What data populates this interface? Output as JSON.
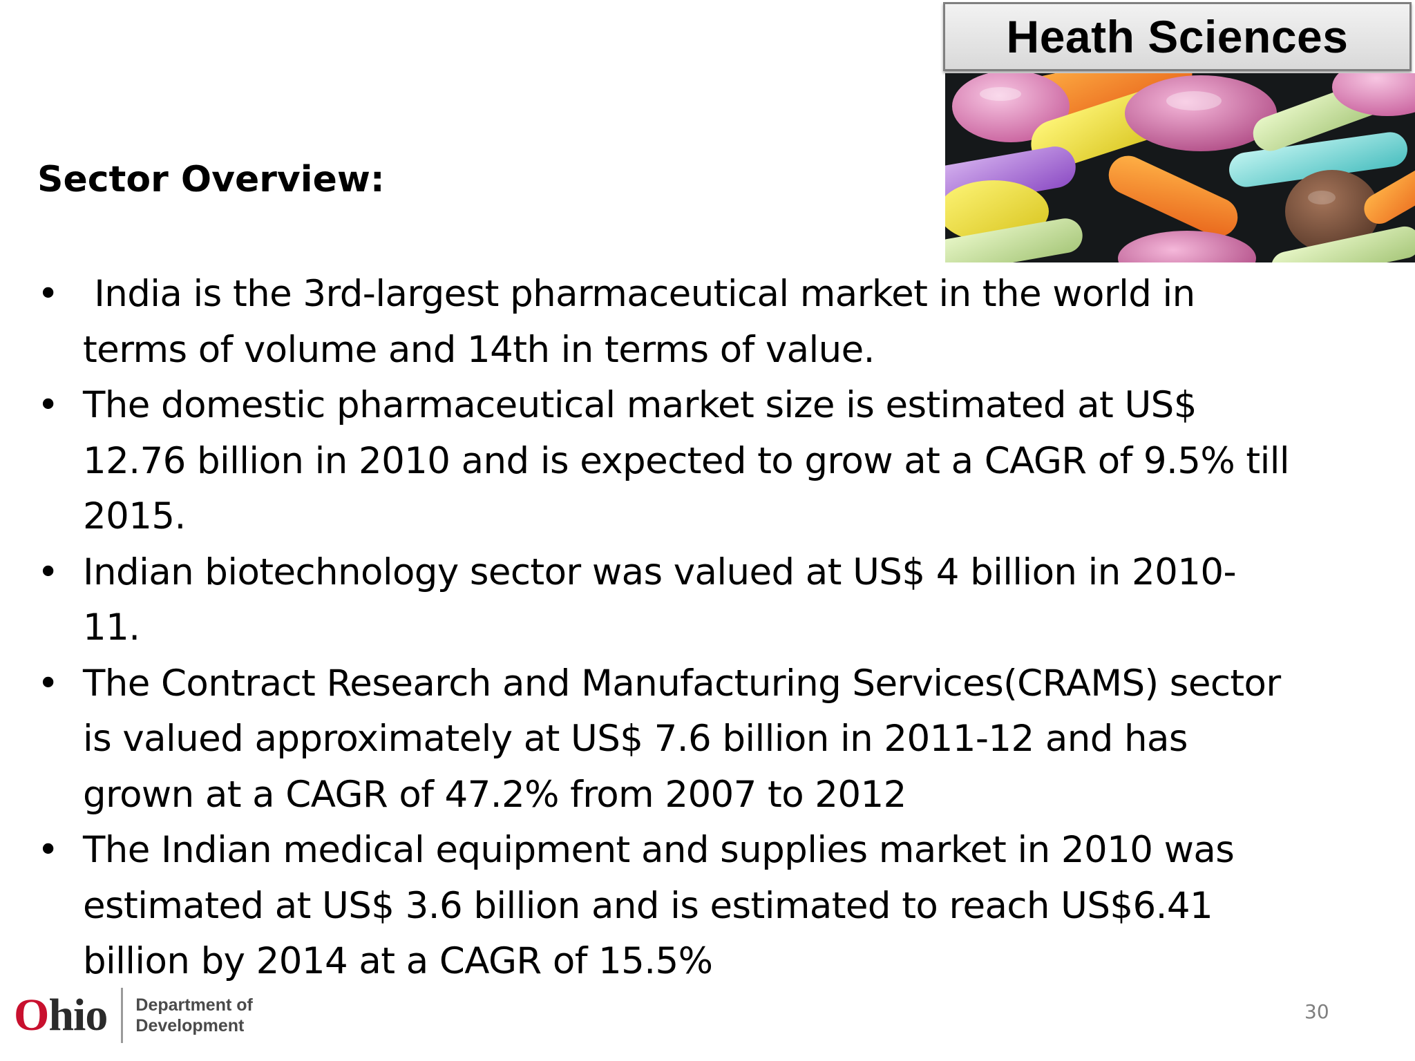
{
  "header": {
    "title": "Heath Sciences"
  },
  "image": {
    "icon": "pills-photo"
  },
  "section": {
    "title": "Sector Overview:"
  },
  "bullets": [
    {
      "lines": [
        " India is the 3rd-largest pharmaceutical market in the world in",
        "terms of volume and 14th in terms of value."
      ]
    },
    {
      "lines": [
        "The domestic pharmaceutical market size is estimated at US$",
        "12.76 billion in 2010 and is expected to grow at a CAGR of 9.5% till",
        "2015."
      ]
    },
    {
      "lines": [
        "Indian biotechnology sector was valued at US$ 4 billion in 2010-",
        "11."
      ]
    },
    {
      "lines": [
        "The Contract Research and Manufacturing Services(CRAMS) sector",
        "is valued approximately at US$ 7.6 billion in 2011-12 and has",
        "grown at a CAGR of 47.2% from 2007 to 2012"
      ]
    },
    {
      "lines": [
        "The Indian medical equipment and supplies market in 2010 was",
        "estimated at US$ 3.6 billion and is estimated to reach US$6.41",
        "billion by 2014 at a CAGR of 15.5%"
      ]
    }
  ],
  "bullet_symbol": "•",
  "footer": {
    "logo_first_letter": "O",
    "logo_rest": "hio",
    "department_line1": "Department of",
    "department_line2": "Development",
    "page_number": "30"
  },
  "colors": {
    "logo_red": "#c8102e",
    "heading_border": "#7f7f7f",
    "page_number": "#7f7f7f"
  }
}
